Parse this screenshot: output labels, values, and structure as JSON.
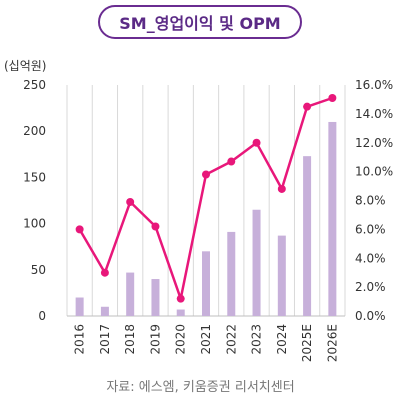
{
  "title": "SM_영업이익 및 OPM",
  "source": "자료: 에스엠, 키움증권 리서치센터",
  "chart_data": {
    "type": "bar",
    "title": "SM_영업이익 및 OPM",
    "y_unit_label": "(십억원)",
    "categories": [
      "2016",
      "2017",
      "2018",
      "2019",
      "2020",
      "2021",
      "2022",
      "2023",
      "2024",
      "2025E",
      "2026E"
    ],
    "series": [
      {
        "type": "bar",
        "axis": "left",
        "color": "#c7b0da",
        "values": [
          20,
          10,
          47,
          40,
          7,
          70,
          91,
          115,
          87,
          173,
          210
        ]
      },
      {
        "type": "line",
        "axis": "right",
        "color": "#e8177a",
        "values": [
          6.0,
          3.0,
          7.9,
          6.2,
          1.2,
          9.8,
          10.7,
          12.0,
          8.8,
          14.5,
          15.1
        ]
      }
    ],
    "y_left": {
      "min": 0,
      "max": 250,
      "ticks": [
        "0",
        "50",
        "100",
        "150",
        "200",
        "250"
      ]
    },
    "y_right": {
      "min": 0,
      "max": 16,
      "ticks": [
        "0.0%",
        "2.0%",
        "4.0%",
        "6.0%",
        "8.0%",
        "10.0%",
        "12.0%",
        "14.0%",
        "16.0%"
      ]
    },
    "grid": "vertical"
  }
}
